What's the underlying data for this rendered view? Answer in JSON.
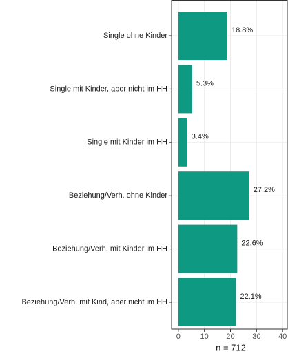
{
  "chart_data": {
    "type": "barh",
    "categories": [
      "Single ohne Kinder",
      "Single mit Kinder, aber nicht im HH",
      "Single mit Kinder im HH",
      "Beziehung/Verh. ohne Kinder",
      "Beziehung/Verh. mit Kinder im HH",
      "Beziehung/Verh. mit Kind, aber nicht im HH"
    ],
    "values": [
      18.8,
      5.3,
      3.4,
      27.2,
      22.6,
      22.1
    ],
    "value_labels": [
      "18.8%",
      "5.3%",
      "3.4%",
      "27.2%",
      "22.6%",
      "22.1%"
    ],
    "color": "#0e9a82",
    "xlabel": "n = 712",
    "xlim": [
      -2.6,
      41.8
    ],
    "xticks": [
      0,
      10,
      20,
      30,
      40
    ],
    "grid": true
  }
}
